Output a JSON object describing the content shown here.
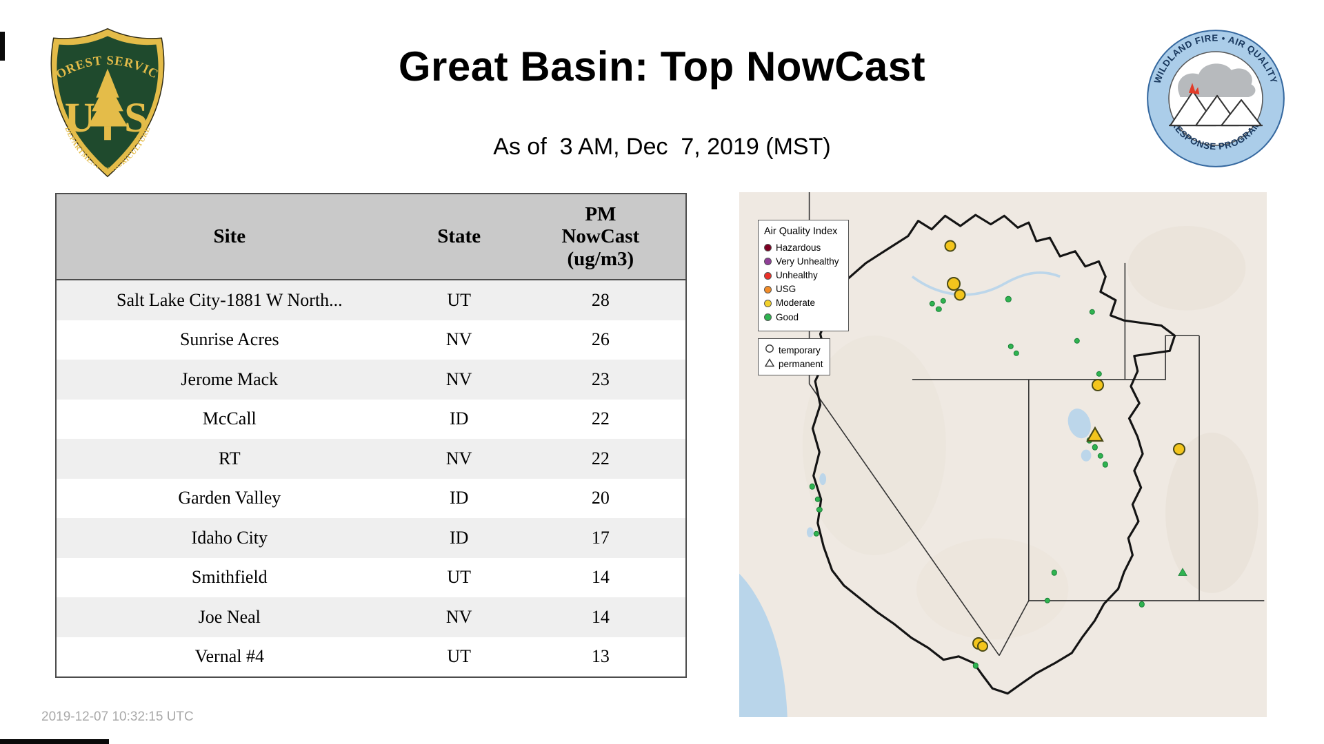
{
  "header": {
    "title": "Great Basin: Top NowCast",
    "subtitle": "As of  3 AM, Dec  7, 2019 (MST)"
  },
  "logos": {
    "usfs": {
      "top_arc": "FOREST SERVICE",
      "monogram_u": "U",
      "monogram_s": "S",
      "bottom_arc": "DEPARTMENT OF AGRICULTURE"
    },
    "wfaqrp": {
      "top_arc": "WILDLAND FIRE • AIR QUALITY",
      "bottom_arc": "RESPONSE PROGRAM"
    }
  },
  "table": {
    "columns": [
      {
        "label": "Site"
      },
      {
        "label": "State"
      },
      {
        "label": "PM\nNowCast\n(ug/m3)"
      }
    ],
    "rows": [
      {
        "site": "Salt Lake City-1881 W North...",
        "state": "UT",
        "value": "28"
      },
      {
        "site": "Sunrise Acres",
        "state": "NV",
        "value": "26"
      },
      {
        "site": "Jerome Mack",
        "state": "NV",
        "value": "23"
      },
      {
        "site": "McCall",
        "state": "ID",
        "value": "22"
      },
      {
        "site": "RT",
        "state": "NV",
        "value": "22"
      },
      {
        "site": "Garden Valley",
        "state": "ID",
        "value": "20"
      },
      {
        "site": "Idaho City",
        "state": "ID",
        "value": "17"
      },
      {
        "site": "Smithfield",
        "state": "UT",
        "value": "14"
      },
      {
        "site": "Joe Neal",
        "state": "NV",
        "value": "14"
      },
      {
        "site": "Vernal #4",
        "state": "UT",
        "value": "13"
      }
    ]
  },
  "chart_data": {
    "type": "table",
    "title": "Great Basin: Top NowCast",
    "subtitle": "As of 3 AM, Dec 7, 2019 (MST)",
    "columns": [
      "Site",
      "State",
      "PM NowCast (ug/m3)"
    ],
    "rows": [
      [
        "Salt Lake City-1881 W North...",
        "UT",
        28
      ],
      [
        "Sunrise Acres",
        "NV",
        26
      ],
      [
        "Jerome Mack",
        "NV",
        23
      ],
      [
        "McCall",
        "ID",
        22
      ],
      [
        "RT",
        "NV",
        22
      ],
      [
        "Garden Valley",
        "ID",
        20
      ],
      [
        "Idaho City",
        "ID",
        17
      ],
      [
        "Smithfield",
        "UT",
        14
      ],
      [
        "Joe Neal",
        "NV",
        14
      ],
      [
        "Vernal #4",
        "UT",
        13
      ]
    ]
  },
  "map": {
    "legend_aqi": {
      "title": "Air Quality Index",
      "items": [
        {
          "label": "Hazardous",
          "color": "#7E0023"
        },
        {
          "label": "Very Unhealthy",
          "color": "#8F3F97"
        },
        {
          "label": "Unhealthy",
          "color": "#EC3028"
        },
        {
          "label": "USG",
          "color": "#F28C28"
        },
        {
          "label": "Moderate",
          "color": "#F2D12B"
        },
        {
          "label": "Good",
          "color": "#2FB350"
        }
      ]
    },
    "legend_type": {
      "items": [
        {
          "label": "temporary",
          "shape": "circle"
        },
        {
          "label": "permanent",
          "shape": "triangle"
        }
      ]
    },
    "marker_colors": {
      "moderate": {
        "fill": "#F3C51D",
        "stroke": "#4A4A16"
      },
      "good": {
        "fill": "#2FB350",
        "stroke": "#1B8038"
      }
    },
    "markers": [
      {
        "x": 40.0,
        "y": 10.3,
        "kind": "circle",
        "level": "moderate",
        "r": 8.5
      },
      {
        "x": 40.6,
        "y": 17.5,
        "kind": "circle",
        "level": "moderate",
        "r": 10
      },
      {
        "x": 41.8,
        "y": 19.6,
        "kind": "circle",
        "level": "moderate",
        "r": 8.5
      },
      {
        "x": 68.0,
        "y": 36.7,
        "kind": "circle",
        "level": "moderate",
        "r": 9
      },
      {
        "x": 83.4,
        "y": 48.9,
        "kind": "circle",
        "level": "moderate",
        "r": 9
      },
      {
        "x": 45.3,
        "y": 86.0,
        "kind": "circle",
        "level": "moderate",
        "r": 9
      },
      {
        "x": 46.2,
        "y": 86.5,
        "kind": "circle",
        "level": "moderate",
        "r": 8
      },
      {
        "x": 67.5,
        "y": 46.0,
        "kind": "triangle",
        "level": "moderate",
        "r": 10
      },
      {
        "x": 84.0,
        "y": 72.3,
        "kind": "triangle",
        "level": "good",
        "r": 5.5
      },
      {
        "x": 36.6,
        "y": 21.2,
        "kind": "circle",
        "level": "good",
        "r": 4.2
      },
      {
        "x": 37.8,
        "y": 22.3,
        "kind": "circle",
        "level": "good",
        "r": 4.2
      },
      {
        "x": 38.7,
        "y": 20.7,
        "kind": "circle",
        "level": "good",
        "r": 4.2
      },
      {
        "x": 51.0,
        "y": 20.4,
        "kind": "circle",
        "level": "good",
        "r": 4.2
      },
      {
        "x": 51.5,
        "y": 29.4,
        "kind": "circle",
        "level": "good",
        "r": 4.2
      },
      {
        "x": 52.5,
        "y": 30.7,
        "kind": "circle",
        "level": "good",
        "r": 4.2
      },
      {
        "x": 64.0,
        "y": 28.3,
        "kind": "circle",
        "level": "good",
        "r": 4.2
      },
      {
        "x": 66.9,
        "y": 22.8,
        "kind": "circle",
        "level": "good",
        "r": 4.2
      },
      {
        "x": 68.2,
        "y": 34.6,
        "kind": "circle",
        "level": "good",
        "r": 4.2
      },
      {
        "x": 66.4,
        "y": 47.3,
        "kind": "circle",
        "level": "good",
        "r": 4.2
      },
      {
        "x": 67.4,
        "y": 48.6,
        "kind": "circle",
        "level": "good",
        "r": 4.2
      },
      {
        "x": 68.5,
        "y": 50.2,
        "kind": "circle",
        "level": "good",
        "r": 4.2
      },
      {
        "x": 69.4,
        "y": 51.9,
        "kind": "circle",
        "level": "good",
        "r": 4.2
      },
      {
        "x": 13.8,
        "y": 56.1,
        "kind": "circle",
        "level": "good",
        "r": 4.2
      },
      {
        "x": 14.9,
        "y": 58.5,
        "kind": "circle",
        "level": "good",
        "r": 4.2
      },
      {
        "x": 15.2,
        "y": 60.5,
        "kind": "circle",
        "level": "good",
        "r": 4.2
      },
      {
        "x": 14.6,
        "y": 65.1,
        "kind": "circle",
        "level": "good",
        "r": 4.2
      },
      {
        "x": 59.7,
        "y": 72.5,
        "kind": "circle",
        "level": "good",
        "r": 4.2
      },
      {
        "x": 58.4,
        "y": 77.8,
        "kind": "circle",
        "level": "good",
        "r": 4.2
      },
      {
        "x": 76.3,
        "y": 78.5,
        "kind": "circle",
        "level": "good",
        "r": 4.2
      },
      {
        "x": 44.8,
        "y": 90.2,
        "kind": "circle",
        "level": "good",
        "r": 4.2
      }
    ]
  },
  "footer": {
    "timestamp": "2019-12-07 10:32:15 UTC"
  }
}
